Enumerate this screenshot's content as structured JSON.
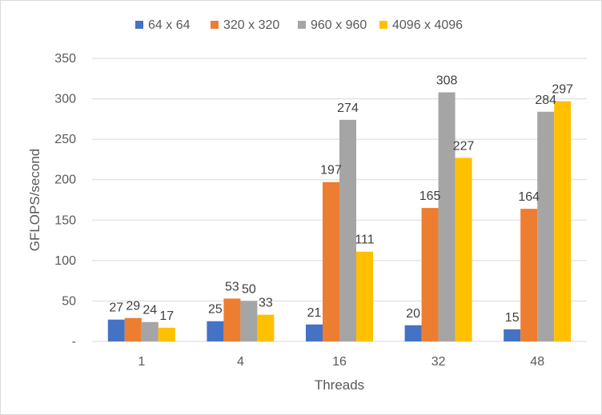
{
  "chart_data": {
    "type": "bar",
    "title": "",
    "xlabel": "Threads",
    "ylabel": "GFLOPS/second",
    "categories": [
      "1",
      "4",
      "16",
      "32",
      "48"
    ],
    "ylim": [
      0,
      350
    ],
    "yticks": [
      0,
      50,
      100,
      150,
      200,
      250,
      300,
      350
    ],
    "ytick_labels": [
      "-",
      "50",
      "100",
      "150",
      "200",
      "250",
      "300",
      "350"
    ],
    "grid": true,
    "legend_position": "top",
    "series": [
      {
        "name": "64 x 64",
        "color": "#4472C4",
        "values": [
          27,
          25,
          21,
          20,
          15
        ]
      },
      {
        "name": "320  x 320",
        "color": "#ED7D31",
        "values": [
          29,
          53,
          197,
          165,
          164
        ]
      },
      {
        "name": "960 x 960",
        "color": "#A5A5A5",
        "values": [
          24,
          50,
          274,
          308,
          284
        ]
      },
      {
        "name": "4096 x 4096",
        "color": "#FFC000",
        "values": [
          17,
          33,
          111,
          227,
          297
        ]
      }
    ]
  }
}
